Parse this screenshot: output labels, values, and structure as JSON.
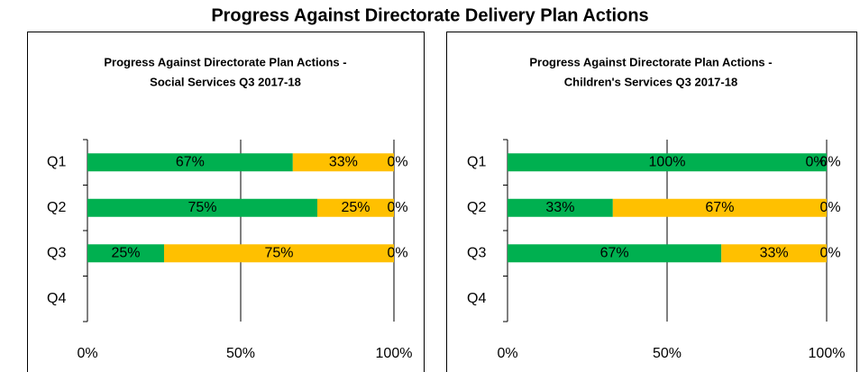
{
  "title": "Progress Against Directorate Delivery Plan Actions",
  "chart_data": [
    {
      "type": "bar",
      "orientation": "horizontal",
      "stacked": true,
      "title": [
        "Progress Against Directorate Plan Actions -",
        "Social Services  Q3 2017-18"
      ],
      "categories": [
        "Q1",
        "Q2",
        "Q3",
        "Q4"
      ],
      "series": [
        {
          "color": "#00b050",
          "values": [
            67,
            75,
            25,
            null
          ],
          "value_labels": [
            "67%",
            "75%",
            "25%",
            null
          ]
        },
        {
          "color": "#ffc000",
          "values": [
            33,
            25,
            75,
            null
          ],
          "value_labels": [
            "33%",
            "25%",
            "75%",
            null
          ]
        },
        {
          "color": "#ff0000",
          "values": [
            0,
            0,
            0,
            null
          ],
          "value_labels": [
            "0%",
            "0%",
            "0%",
            null
          ]
        }
      ],
      "xlim": [
        0,
        100
      ],
      "xticks": [
        {
          "value": 0,
          "label": "0%"
        },
        {
          "value": 50,
          "label": "50%"
        },
        {
          "value": 100,
          "label": "100%"
        }
      ]
    },
    {
      "type": "bar",
      "orientation": "horizontal",
      "stacked": true,
      "title": [
        "Progress Against Directorate Plan Actions -",
        "Children's Services Q3 2017-18"
      ],
      "categories": [
        "Q1",
        "Q2",
        "Q3",
        "Q4"
      ],
      "series": [
        {
          "color": "#00b050",
          "values": [
            100,
            33,
            67,
            null
          ],
          "value_labels": [
            "100%",
            "33%",
            "67%",
            null
          ]
        },
        {
          "color": "#ffc000",
          "values": [
            0,
            67,
            33,
            null
          ],
          "value_labels": [
            "0%",
            "67%",
            "33%",
            null
          ]
        },
        {
          "color": "#ff0000",
          "values": [
            0,
            0,
            0,
            null
          ],
          "value_labels": [
            "0%",
            "0%",
            "0%",
            null
          ]
        }
      ],
      "xlim": [
        0,
        100
      ],
      "xticks": [
        {
          "value": 0,
          "label": "0%"
        },
        {
          "value": 50,
          "label": "50%"
        },
        {
          "value": 100,
          "label": "100%"
        }
      ]
    }
  ]
}
